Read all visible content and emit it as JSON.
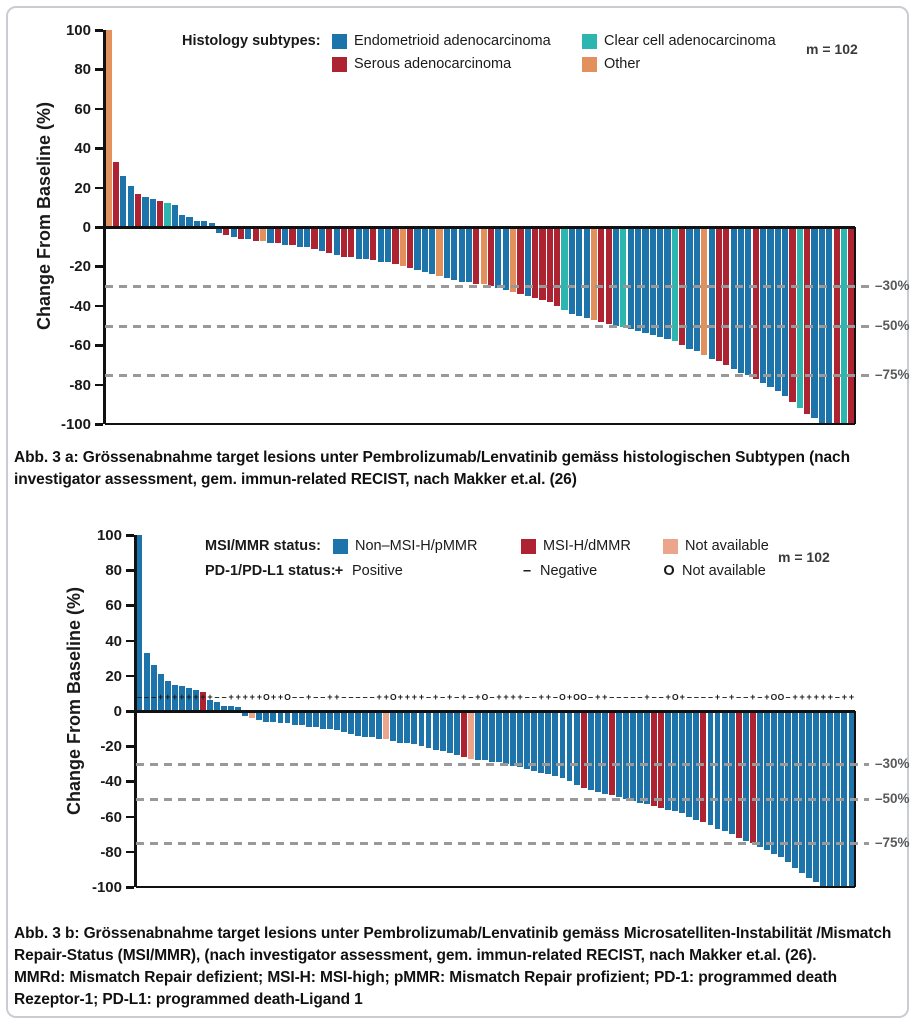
{
  "page": {
    "background": "#ffffff",
    "border_color": "#c9cdd1"
  },
  "figure_a": {
    "m_label": "m = 102",
    "ylabel": "Change From Baseline (%)",
    "legend_title": "Histology subtypes:",
    "legend_items": [
      {
        "key": "E",
        "label": "Endometrioid adenocarcinoma",
        "color": "#1d74ab"
      },
      {
        "key": "C",
        "label": "Clear cell adenocarcinoma",
        "color": "#2cb6af"
      },
      {
        "key": "S",
        "label": "Serous adenocarcinoma",
        "color": "#ad2332"
      },
      {
        "key": "O",
        "label": "Other",
        "color": "#e2915c"
      }
    ],
    "caption": "Abb. 3 a: Grössenabnahme target lesions unter Pembrolizumab/Lenvatinib gemäss histologischen Subtypen (nach investigator assessment, gem. immun-related RECIST, nach Makker et.al. (26)"
  },
  "figure_b": {
    "m_label": "m = 102",
    "ylabel": "Change From Baseline (%)",
    "legend_row1_title": "MSI/MMR status:",
    "legend_row1_items": [
      {
        "key": "N",
        "label": "Non–MSI-H/pMMR",
        "color": "#1d74ab"
      },
      {
        "key": "M",
        "label": "MSI-H/dMMR",
        "color": "#ad2332"
      },
      {
        "key": "X",
        "label": "Not available",
        "color": "#eaa58c"
      }
    ],
    "legend_row2_title": "PD-1/PD-L1 status:",
    "legend_row2_items": [
      {
        "symbol": "+",
        "label": "Positive"
      },
      {
        "symbol": "–",
        "label": "Negative"
      },
      {
        "symbol": "O",
        "label": "Not available"
      }
    ],
    "caption_line1": "Abb. 3 b: Grössenabnahme target lesions unter Pembrolizumab/Lenvatinib gemäss Microsatelliten-Instabilität /Mismatch Repair-Status (MSI/MMR),  (nach investigator assessment, gem. immun-related RECIST, nach Makker et.al. (26).",
    "caption_line2": "MMRd: Mismatch Repair defizient; MSI-H: MSI-high; pMMR: Mismatch Repair profizient; PD-1: programmed death Rezeptor-1; PD-L1: programmed death-Ligand 1"
  },
  "chart_data": [
    {
      "type": "bar",
      "subtype": "waterfall",
      "title": "Change from baseline by histology subtype",
      "ylabel": "Change From Baseline (%)",
      "ylim": [
        -100,
        100
      ],
      "yticks": [
        100,
        80,
        60,
        40,
        20,
        0,
        -20,
        -40,
        -60,
        -80,
        -100
      ],
      "thresholds": [
        {
          "value": -30,
          "label": "–30%"
        },
        {
          "value": -50,
          "label": "–50%"
        },
        {
          "value": -75,
          "label": "–75%"
        }
      ],
      "n_label": "m = 102",
      "legend_position": "top-inside",
      "grid": false,
      "series_colors": {
        "E": "#1d74ab",
        "S": "#ad2332",
        "C": "#2cb6af",
        "O": "#e2915c"
      },
      "series_names": {
        "E": "Endometrioid adenocarcinoma",
        "S": "Serous adenocarcinoma",
        "C": "Clear cell adenocarcinoma",
        "O": "Other"
      },
      "values": [
        100,
        33,
        26,
        21,
        17,
        15,
        14,
        13,
        12,
        11,
        6,
        5,
        3,
        3,
        2,
        -3,
        -4,
        -5,
        -6,
        -6,
        -7,
        -7,
        -8,
        -8,
        -9,
        -9,
        -10,
        -10,
        -11,
        -12,
        -13,
        -14,
        -15,
        -15,
        -16,
        -16,
        -17,
        -18,
        -18,
        -19,
        -20,
        -21,
        -22,
        -23,
        -24,
        -25,
        -26,
        -27,
        -28,
        -28,
        -29,
        -29,
        -30,
        -31,
        -32,
        -33,
        -34,
        -35,
        -36,
        -37,
        -38,
        -40,
        -42,
        -44,
        -45,
        -46,
        -47,
        -48,
        -49,
        -50,
        -51,
        -52,
        -53,
        -54,
        -55,
        -56,
        -57,
        -58,
        -60,
        -62,
        -63,
        -65,
        -67,
        -68,
        -70,
        -72,
        -74,
        -75,
        -77,
        -79,
        -81,
        -83,
        -86,
        -89,
        -92,
        -95,
        -97,
        -100,
        -100,
        -100,
        -100,
        -100
      ],
      "categories": [
        "O",
        "S",
        "E",
        "E",
        "S",
        "E",
        "E",
        "S",
        "C",
        "E",
        "E",
        "E",
        "E",
        "E",
        "E",
        "E",
        "S",
        "E",
        "S",
        "E",
        "S",
        "O",
        "E",
        "S",
        "E",
        "S",
        "E",
        "E",
        "S",
        "E",
        "S",
        "E",
        "S",
        "S",
        "E",
        "E",
        "S",
        "E",
        "E",
        "S",
        "O",
        "S",
        "E",
        "E",
        "E",
        "O",
        "E",
        "E",
        "E",
        "E",
        "S",
        "O",
        "S",
        "E",
        "E",
        "O",
        "S",
        "E",
        "S",
        "S",
        "S",
        "S",
        "C",
        "E",
        "E",
        "E",
        "O",
        "S",
        "S",
        "E",
        "C",
        "E",
        "E",
        "E",
        "E",
        "E",
        "E",
        "C",
        "S",
        "E",
        "E",
        "O",
        "E",
        "S",
        "S",
        "E",
        "E",
        "E",
        "S",
        "E",
        "E",
        "E",
        "E",
        "S",
        "C",
        "S",
        "E",
        "E",
        "E",
        "S",
        "C",
        "S"
      ]
    },
    {
      "type": "bar",
      "subtype": "waterfall",
      "title": "Change from baseline by MSI/MMR and PD-1/PD-L1 status",
      "ylabel": "Change From Baseline (%)",
      "ylim": [
        -100,
        100
      ],
      "yticks": [
        100,
        80,
        60,
        40,
        20,
        0,
        -20,
        -40,
        -60,
        -80,
        -100
      ],
      "thresholds": [
        {
          "value": -30,
          "label": "–30%"
        },
        {
          "value": -50,
          "label": "–50%"
        },
        {
          "value": -75,
          "label": "–75%"
        }
      ],
      "n_label": "m = 102",
      "legend_position": "top-inside",
      "grid": false,
      "series_colors": {
        "N": "#1d74ab",
        "M": "#ad2332",
        "X": "#eaa58c"
      },
      "series_names": {
        "N": "Non–MSI-H/pMMR",
        "M": "MSI-H/dMMR",
        "X": "Not available"
      },
      "symbol_row_value": 8,
      "symbol_legend": {
        "+": "PD-1/PD-L1 Positive",
        "–": "PD-1/PD-L1 Negative",
        "O": "PD-1/PD-L1 Not available"
      },
      "values": [
        100,
        33,
        26,
        21,
        17,
        15,
        14,
        13,
        12,
        11,
        6,
        5,
        3,
        3,
        2,
        -3,
        -4,
        -5,
        -6,
        -6,
        -7,
        -7,
        -8,
        -8,
        -9,
        -9,
        -10,
        -10,
        -11,
        -12,
        -13,
        -14,
        -15,
        -15,
        -16,
        -16,
        -17,
        -18,
        -18,
        -19,
        -20,
        -21,
        -22,
        -23,
        -24,
        -25,
        -26,
        -27,
        -28,
        -28,
        -29,
        -29,
        -30,
        -31,
        -32,
        -33,
        -34,
        -35,
        -36,
        -37,
        -38,
        -40,
        -42,
        -44,
        -45,
        -46,
        -47,
        -48,
        -49,
        -50,
        -51,
        -52,
        -53,
        -54,
        -55,
        -56,
        -57,
        -58,
        -60,
        -62,
        -63,
        -65,
        -67,
        -68,
        -70,
        -72,
        -74,
        -75,
        -77,
        -79,
        -81,
        -83,
        -86,
        -89,
        -92,
        -95,
        -97,
        -100,
        -100,
        -100,
        -100,
        -100
      ],
      "categories": [
        "N",
        "N",
        "N",
        "N",
        "N",
        "N",
        "N",
        "N",
        "N",
        "M",
        "N",
        "N",
        "N",
        "N",
        "N",
        "N",
        "X",
        "N",
        "N",
        "N",
        "N",
        "N",
        "N",
        "N",
        "N",
        "N",
        "N",
        "N",
        "N",
        "N",
        "N",
        "N",
        "N",
        "N",
        "N",
        "X",
        "N",
        "N",
        "N",
        "N",
        "N",
        "N",
        "N",
        "N",
        "N",
        "N",
        "M",
        "X",
        "N",
        "N",
        "N",
        "N",
        "N",
        "N",
        "N",
        "N",
        "N",
        "N",
        "N",
        "N",
        "N",
        "N",
        "N",
        "M",
        "N",
        "N",
        "N",
        "M",
        "N",
        "N",
        "N",
        "N",
        "N",
        "M",
        "M",
        "N",
        "N",
        "N",
        "N",
        "N",
        "M",
        "N",
        "N",
        "N",
        "N",
        "M",
        "N",
        "M",
        "N",
        "N",
        "N",
        "N",
        "N",
        "N",
        "N",
        "N",
        "N",
        "N",
        "N",
        "N",
        "N",
        "N"
      ],
      "symbols": [
        "-",
        "-",
        "-",
        "+",
        "+",
        "+",
        "+",
        "+",
        "+",
        "+",
        "+",
        "-",
        "-",
        "+",
        "+",
        "+",
        "+",
        "+",
        "O",
        "+",
        "+",
        "O",
        "-",
        "-",
        "+",
        "-",
        "-",
        "+",
        "+",
        "-",
        "-",
        "-",
        "-",
        "-",
        "+",
        "+",
        "O",
        "+",
        "+",
        "+",
        "+",
        "-",
        "+",
        "-",
        "+",
        "-",
        "+",
        "-",
        "+",
        "O",
        "-",
        "+",
        "+",
        "+",
        "+",
        "-",
        "-",
        "+",
        "+",
        "-",
        "O",
        "+",
        "O",
        "O",
        "-",
        "+",
        "+",
        "-",
        "-",
        "-",
        "-",
        "-",
        "+",
        "-",
        "-",
        "+",
        "O",
        "+",
        "-",
        "-",
        "-",
        "-",
        "+",
        "-",
        "+",
        "-",
        "-",
        "+",
        "-",
        "+",
        "O",
        "O",
        "-",
        "+",
        "+",
        "+",
        "+",
        "+",
        "+",
        "-",
        "+",
        "+"
      ]
    }
  ]
}
